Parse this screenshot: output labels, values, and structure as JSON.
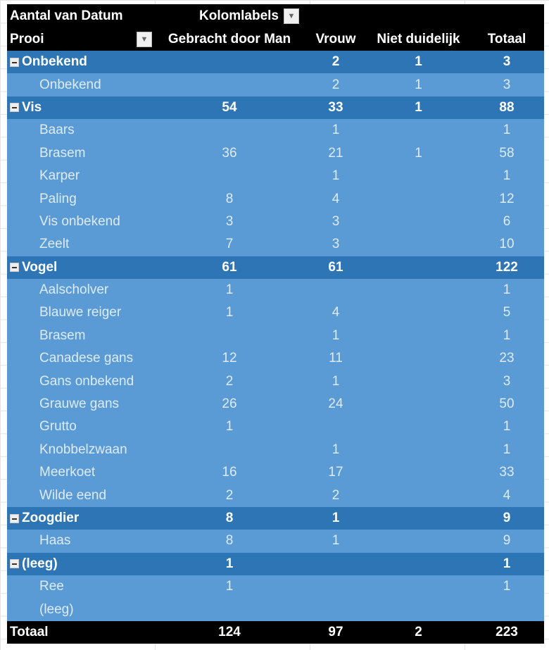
{
  "header": {
    "value_label": "Aantal van Datum",
    "column_labels": "Kolomlabels",
    "row_field": "Prooi",
    "columns": [
      "Gebracht door Man",
      "Vrouw",
      "Niet duidelijk",
      "Totaal"
    ]
  },
  "rows": [
    {
      "type": "grp",
      "label": "Onbekend",
      "v": [
        "",
        "2",
        "1",
        "3"
      ]
    },
    {
      "type": "det",
      "label": "Onbekend",
      "v": [
        "",
        "2",
        "1",
        "3"
      ]
    },
    {
      "type": "grp",
      "label": "Vis",
      "v": [
        "54",
        "33",
        "1",
        "88"
      ]
    },
    {
      "type": "det",
      "label": "Baars",
      "v": [
        "",
        "1",
        "",
        "1"
      ]
    },
    {
      "type": "det",
      "label": "Brasem",
      "v": [
        "36",
        "21",
        "1",
        "58"
      ]
    },
    {
      "type": "det",
      "label": "Karper",
      "v": [
        "",
        "1",
        "",
        "1"
      ]
    },
    {
      "type": "det",
      "label": "Paling",
      "v": [
        "8",
        "4",
        "",
        "12"
      ]
    },
    {
      "type": "det",
      "label": "Vis onbekend",
      "v": [
        "3",
        "3",
        "",
        "6"
      ]
    },
    {
      "type": "det",
      "label": "Zeelt",
      "v": [
        "7",
        "3",
        "",
        "10"
      ]
    },
    {
      "type": "grp",
      "label": "Vogel",
      "v": [
        "61",
        "61",
        "",
        "122"
      ]
    },
    {
      "type": "det",
      "label": "Aalscholver",
      "v": [
        "1",
        "",
        "",
        "1"
      ]
    },
    {
      "type": "det",
      "label": "Blauwe reiger",
      "v": [
        "1",
        "4",
        "",
        "5"
      ]
    },
    {
      "type": "det",
      "label": "Brasem",
      "v": [
        "",
        "1",
        "",
        "1"
      ]
    },
    {
      "type": "det",
      "label": "Canadese gans",
      "v": [
        "12",
        "11",
        "",
        "23"
      ]
    },
    {
      "type": "det",
      "label": "Gans onbekend",
      "v": [
        "2",
        "1",
        "",
        "3"
      ]
    },
    {
      "type": "det",
      "label": "Grauwe gans",
      "v": [
        "26",
        "24",
        "",
        "50"
      ]
    },
    {
      "type": "det",
      "label": "Grutto",
      "v": [
        "1",
        "",
        "",
        "1"
      ]
    },
    {
      "type": "det",
      "label": "Knobbelzwaan",
      "v": [
        "",
        "1",
        "",
        "1"
      ]
    },
    {
      "type": "det",
      "label": "Meerkoet",
      "v": [
        "16",
        "17",
        "",
        "33"
      ]
    },
    {
      "type": "det",
      "label": "Wilde eend",
      "v": [
        "2",
        "2",
        "",
        "4"
      ]
    },
    {
      "type": "grp",
      "label": "Zoogdier",
      "v": [
        "8",
        "1",
        "",
        "9"
      ]
    },
    {
      "type": "det",
      "label": "Haas",
      "v": [
        "8",
        "1",
        "",
        "9"
      ]
    },
    {
      "type": "grp",
      "label": "(leeg)",
      "v": [
        "1",
        "",
        "",
        "1"
      ]
    },
    {
      "type": "det",
      "label": "Ree",
      "v": [
        "1",
        "",
        "",
        "1"
      ]
    },
    {
      "type": "det",
      "label": "(leeg)",
      "v": [
        "",
        "",
        "",
        ""
      ]
    }
  ],
  "total": {
    "label": "Totaal",
    "v": [
      "124",
      "97",
      "2",
      "223"
    ]
  }
}
